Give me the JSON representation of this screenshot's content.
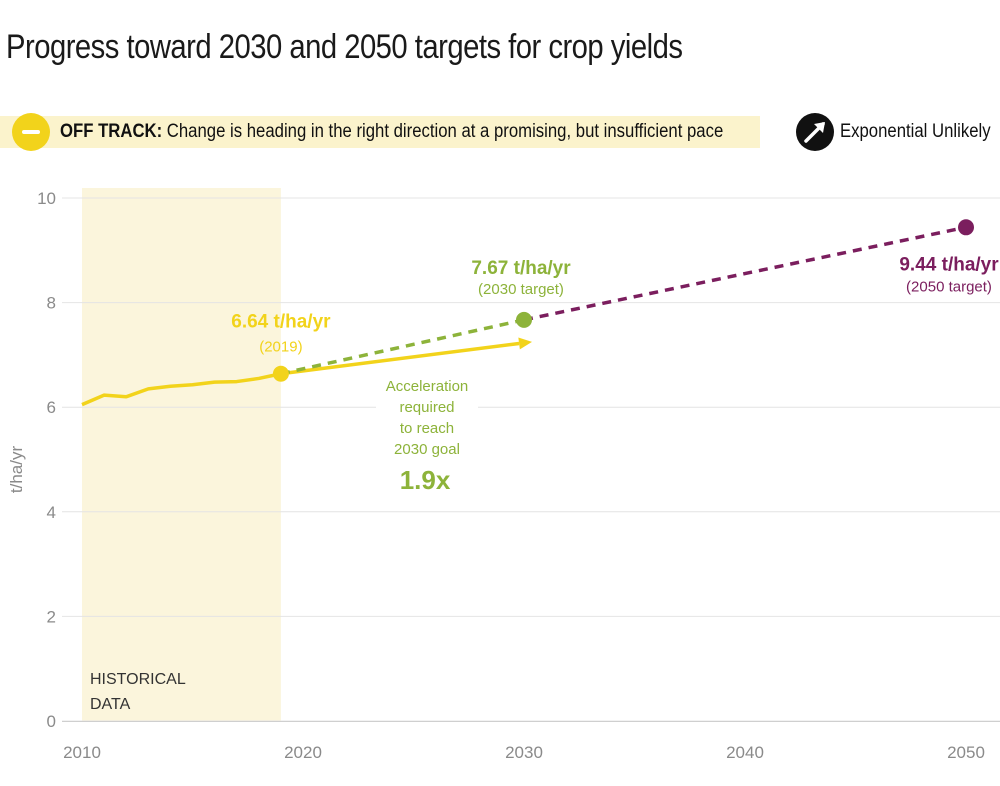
{
  "title": "Progress toward 2030 and 2050 targets for crop yields",
  "status": {
    "label": "OFF TRACK:",
    "description": "Change is heading in the right direction at a promising, but insufficient pace",
    "color": "#f2d31b",
    "band_color": "#fbf3cc",
    "icon": "minus-circle-icon"
  },
  "trend": {
    "label": "Exponential Unlikely",
    "icon": "arrow-up-right-icon"
  },
  "historical_label": [
    "HISTORICAL",
    "DATA"
  ],
  "chart_data": {
    "type": "line",
    "xlim": [
      2010,
      2050
    ],
    "ylim": [
      0,
      10
    ],
    "xticks": [
      2010,
      2020,
      2030,
      2040,
      2050
    ],
    "yticks": [
      0,
      2,
      4,
      6,
      8,
      10
    ],
    "ylabel": "t/ha/yr",
    "grid": true,
    "historical_shading": [
      2010,
      2019
    ],
    "series": [
      {
        "color": "#f2d31b",
        "style": "solid",
        "x": [
          2010,
          2011,
          2012,
          2013,
          2014,
          2015,
          2016,
          2017,
          2018,
          2019
        ],
        "y": [
          6.05,
          6.23,
          6.2,
          6.35,
          6.4,
          6.43,
          6.48,
          6.49,
          6.55,
          6.64
        ]
      },
      {
        "color": "#f2d31b",
        "style": "solid-arrow",
        "x": [
          2019,
          2030
        ],
        "y": [
          6.64,
          7.25
        ]
      },
      {
        "color": "#8db33a",
        "style": "dashed",
        "x": [
          2019,
          2030
        ],
        "y": [
          6.64,
          7.67
        ]
      },
      {
        "color": "#7b1e5e",
        "style": "dashed",
        "x": [
          2030,
          2050
        ],
        "y": [
          7.67,
          9.44
        ]
      }
    ],
    "annotations": [
      {
        "x": 2019,
        "y": 6.64,
        "value": "6.64 t/ha/yr",
        "sub": "(2019)",
        "color": "#f2d31b"
      },
      {
        "x": 2030,
        "y": 7.67,
        "value": "7.67 t/ha/yr",
        "sub": "(2030 target)",
        "color": "#8db33a"
      },
      {
        "x": 2050,
        "y": 9.44,
        "value": "9.44 t/ha/yr",
        "sub": "(2050 target)",
        "color": "#7b1e5e"
      }
    ],
    "acceleration": {
      "lines": [
        "Acceleration",
        "required",
        "to reach",
        "2030 goal"
      ],
      "value": "1.9x"
    }
  }
}
